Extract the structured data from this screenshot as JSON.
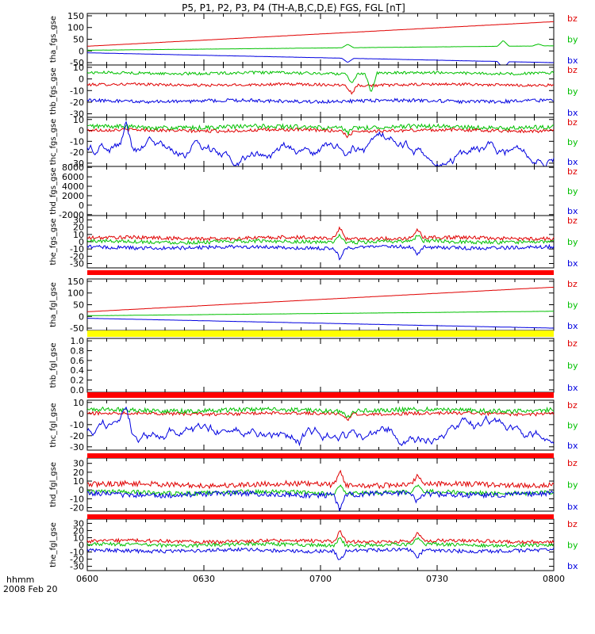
{
  "chart_data": {
    "type": "line",
    "title": "P5, P1, P2, P3, P4 (TH-A,B,C,D,E) FGS, FGL [nT]",
    "x_axis": {
      "ticks": [
        "0600",
        "0630",
        "0700",
        "0730",
        "0800"
      ],
      "tick_minutes": [
        0,
        30,
        60,
        90,
        120
      ],
      "label": "hhmm",
      "date": "2008 Feb 20",
      "range_minutes": [
        0,
        120
      ]
    },
    "panels": [
      {
        "ylabel": "tha_fgs_gse",
        "yticks": [
          "150",
          "100",
          "50",
          "0",
          "-50"
        ],
        "ylim": [
          -60,
          160
        ],
        "has_data": true,
        "series": [
          {
            "name": "bz",
            "color": "#e00000",
            "kind": "ramp",
            "from": 20,
            "to": 125,
            "wiggle": 0.6
          },
          {
            "name": "by",
            "color": "#00c000",
            "kind": "ramp",
            "from": 3,
            "to": 22,
            "wiggle": 0.6,
            "spikes": [
              [
                67,
                15
              ],
              [
                107,
                25
              ],
              [
                116,
                8
              ]
            ]
          },
          {
            "name": "bx",
            "color": "#0000e0",
            "kind": "ramp",
            "from": -8,
            "to": -50,
            "wiggle": 0.6,
            "spikes": [
              [
                67,
                -18
              ],
              [
                107,
                -32
              ]
            ]
          }
        ]
      },
      {
        "ylabel": "thb_fgs_gse",
        "yticks": [
          "10",
          "0",
          "-10",
          "-20",
          "-30"
        ],
        "ylim": [
          -33,
          12
        ],
        "has_data": true,
        "series": [
          {
            "name": "bz",
            "color": "#e00000",
            "kind": "level",
            "level": -5,
            "wiggle": 1.2,
            "spikes": [
              [
                68,
                -7
              ]
            ]
          },
          {
            "name": "by",
            "color": "#00c000",
            "kind": "level",
            "level": 5,
            "wiggle": 1.2,
            "spikes": [
              [
                68,
                -8
              ],
              [
                73,
                -16
              ]
            ]
          },
          {
            "name": "bx",
            "color": "#0000e0",
            "kind": "level",
            "level": -19,
            "wiggle": 1.5
          }
        ]
      },
      {
        "ylabel": "thc_fgs_gse",
        "yticks": [
          "10",
          "0",
          "-10",
          "-20",
          "-30"
        ],
        "ylim": [
          -33,
          12
        ],
        "has_data": true,
        "series": [
          {
            "name": "bz",
            "color": "#e00000",
            "kind": "level",
            "level": 0,
            "wiggle": 1.5,
            "spikes": [
              [
                67,
                -6
              ]
            ]
          },
          {
            "name": "by",
            "color": "#00c000",
            "kind": "level",
            "level": 3,
            "wiggle": 2,
            "spikes": [
              [
                67,
                -5
              ]
            ]
          },
          {
            "name": "bx",
            "color": "#0000e0",
            "kind": "wander",
            "level": -17,
            "wiggle": 5,
            "spikes": [
              [
                10,
                20
              ],
              [
                67,
                -10
              ]
            ]
          }
        ]
      },
      {
        "ylabel": "thd_fgs_gse",
        "yticks": [
          "8000",
          "6000",
          "4000",
          "2000",
          "0",
          "-2000"
        ],
        "ylim": [
          -2200,
          8200
        ],
        "has_data": false,
        "series": []
      },
      {
        "ylabel": "the_fgs_gse",
        "yticks": [
          "30",
          "20",
          "10",
          "0",
          "-10",
          "-20",
          "-30"
        ],
        "ylim": [
          -36,
          36
        ],
        "has_data": true,
        "series": [
          {
            "name": "bz",
            "color": "#e00000",
            "kind": "level",
            "level": 5,
            "wiggle": 2.5,
            "spikes": [
              [
                65,
                15
              ],
              [
                85,
                12
              ]
            ]
          },
          {
            "name": "by",
            "color": "#00c000",
            "kind": "level",
            "level": 0,
            "wiggle": 2.5,
            "spikes": [
              [
                65,
                10
              ],
              [
                85,
                8
              ]
            ]
          },
          {
            "name": "bx",
            "color": "#0000e0",
            "kind": "level",
            "level": -8,
            "wiggle": 2.5,
            "spikes": [
              [
                65,
                -15
              ],
              [
                85,
                -10
              ]
            ]
          }
        ]
      },
      {
        "ylabel": "tha_fgl_gse",
        "yticks": [
          "150",
          "100",
          "50",
          "0",
          "-50"
        ],
        "ylim": [
          -60,
          160
        ],
        "has_data": true,
        "series": [
          {
            "name": "bz",
            "color": "#e00000",
            "kind": "ramp",
            "from": 20,
            "to": 125,
            "wiggle": 0.5
          },
          {
            "name": "by",
            "color": "#00c000",
            "kind": "ramp",
            "from": 3,
            "to": 22,
            "wiggle": 0.5
          },
          {
            "name": "bx",
            "color": "#0000e0",
            "kind": "ramp",
            "from": -8,
            "to": -50,
            "wiggle": 0.5
          }
        ]
      },
      {
        "ylabel": "thb_fgl_gse",
        "yticks": [
          "1.0",
          "0.8",
          "0.6",
          "0.4",
          "0.2",
          "0.0"
        ],
        "ylim": [
          -0.05,
          1.05
        ],
        "has_data": false,
        "series": []
      },
      {
        "ylabel": "thc_fgl_gse",
        "yticks": [
          "10",
          "0",
          "-10",
          "-20",
          "-30"
        ],
        "ylim": [
          -33,
          12
        ],
        "has_data": true,
        "series": [
          {
            "name": "bz",
            "color": "#e00000",
            "kind": "level",
            "level": 0,
            "wiggle": 1.5,
            "spikes": [
              [
                67,
                -6
              ]
            ]
          },
          {
            "name": "by",
            "color": "#00c000",
            "kind": "level",
            "level": 3,
            "wiggle": 2,
            "spikes": [
              [
                67,
                -5
              ]
            ]
          },
          {
            "name": "bx",
            "color": "#0000e0",
            "kind": "wander",
            "level": -17,
            "wiggle": 5,
            "spikes": [
              [
                10,
                20
              ],
              [
                67,
                -10
              ]
            ]
          }
        ]
      },
      {
        "ylabel": "thd_fgl_gse",
        "yticks": [
          "30",
          "20",
          "10",
          "0",
          "-10",
          "-20"
        ],
        "ylim": [
          -24,
          36
        ],
        "has_data": true,
        "series": [
          {
            "name": "bz",
            "color": "#e00000",
            "kind": "level",
            "level": 6,
            "wiggle": 3,
            "spikes": [
              [
                65,
                18
              ],
              [
                85,
                12
              ]
            ]
          },
          {
            "name": "by",
            "color": "#00c000",
            "kind": "level",
            "level": -3,
            "wiggle": 2.5,
            "spikes": [
              [
                65,
                10
              ],
              [
                85,
                8
              ]
            ]
          },
          {
            "name": "bx",
            "color": "#0000e0",
            "kind": "level",
            "level": -5,
            "wiggle": 3,
            "spikes": [
              [
                65,
                -18
              ],
              [
                85,
                -10
              ]
            ]
          }
        ]
      },
      {
        "ylabel": "the_fgl_gse",
        "yticks": [
          "30",
          "20",
          "10",
          "0",
          "-10",
          "-20",
          "-30"
        ],
        "ylim": [
          -36,
          36
        ],
        "has_data": true,
        "series": [
          {
            "name": "bz",
            "color": "#e00000",
            "kind": "level",
            "level": 5,
            "wiggle": 2.5,
            "spikes": [
              [
                65,
                15
              ],
              [
                85,
                12
              ]
            ]
          },
          {
            "name": "by",
            "color": "#00c000",
            "kind": "level",
            "level": 0,
            "wiggle": 2.5,
            "spikes": [
              [
                65,
                10
              ],
              [
                85,
                8
              ]
            ]
          },
          {
            "name": "bx",
            "color": "#0000e0",
            "kind": "level",
            "level": -8,
            "wiggle": 2.5,
            "spikes": [
              [
                65,
                -15
              ],
              [
                85,
                -10
              ]
            ]
          }
        ]
      }
    ],
    "legend_labels": [
      "bz",
      "by",
      "bx"
    ],
    "legend_colors": [
      "#e00000",
      "#00c000",
      "#0000e0"
    ],
    "grid": false
  }
}
